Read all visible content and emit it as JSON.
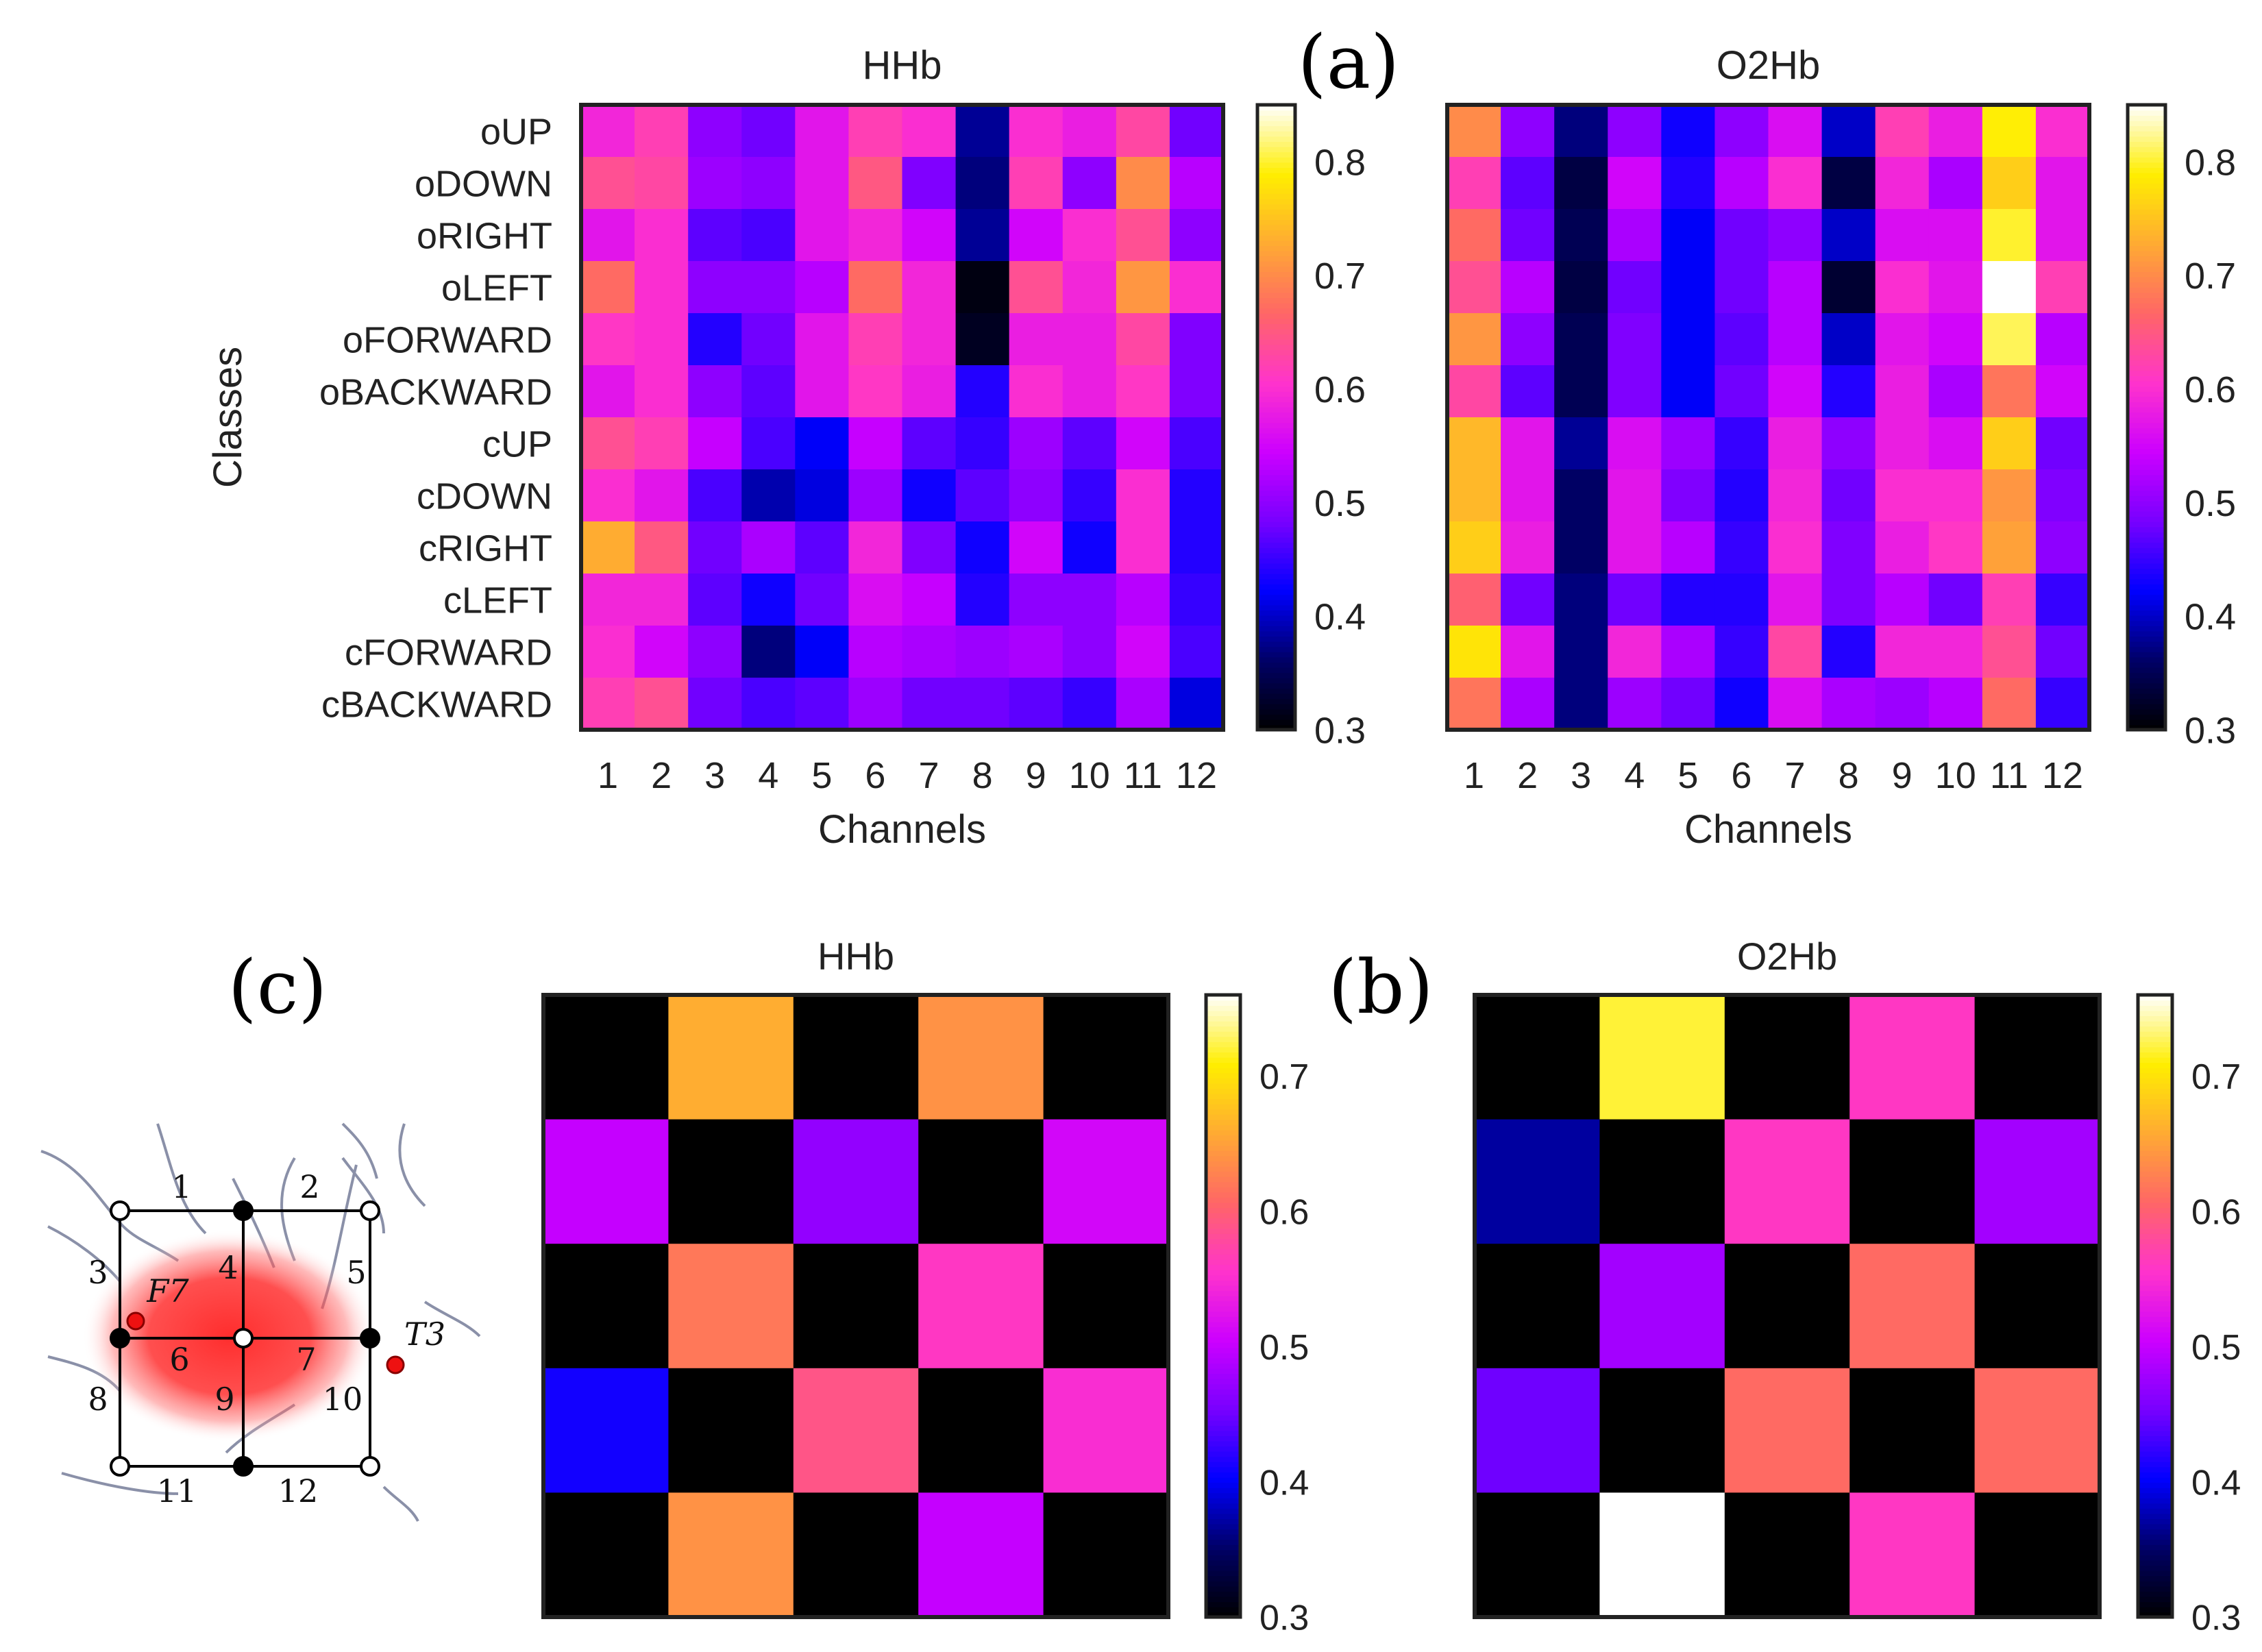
{
  "panel_letters": {
    "a": "(a)",
    "b": "(b)",
    "c": "(c)"
  },
  "colormap_stops": [
    "#000000",
    "#000066",
    "#0000ff",
    "#7700ff",
    "#cc00ff",
    "#ff33cc",
    "#ff6666",
    "#ffaa33",
    "#ffee00",
    "#ffffff"
  ],
  "chart_data": [
    {
      "id": "a-hhb",
      "type": "heatmap",
      "title": "HHb",
      "xlabel": "Channels",
      "ylabel": "Classes",
      "x_ticks": [
        "1",
        "2",
        "3",
        "4",
        "5",
        "6",
        "7",
        "8",
        "9",
        "10",
        "11",
        "12"
      ],
      "y_ticks": [
        "oUP",
        "oDOWN",
        "oRIGHT",
        "oLEFT",
        "oFORWARD",
        "oBACKWARD",
        "cUP",
        "cDOWN",
        "cRIGHT",
        "cLEFT",
        "cFORWARD",
        "cBACKWARD"
      ],
      "clim": [
        0.3,
        0.85
      ],
      "colorbar_ticks": [
        "0.3",
        "0.4",
        "0.5",
        "0.6",
        "0.7",
        "0.8"
      ],
      "values": [
        [
          0.59,
          0.62,
          0.5,
          0.48,
          0.57,
          0.62,
          0.6,
          0.38,
          0.6,
          0.58,
          0.63,
          0.48
        ],
        [
          0.64,
          0.63,
          0.51,
          0.5,
          0.57,
          0.65,
          0.49,
          0.37,
          0.62,
          0.5,
          0.7,
          0.53
        ],
        [
          0.57,
          0.6,
          0.47,
          0.46,
          0.57,
          0.59,
          0.55,
          0.38,
          0.55,
          0.6,
          0.64,
          0.5
        ],
        [
          0.67,
          0.6,
          0.5,
          0.5,
          0.53,
          0.67,
          0.59,
          0.31,
          0.64,
          0.59,
          0.71,
          0.6
        ],
        [
          0.61,
          0.6,
          0.44,
          0.48,
          0.57,
          0.62,
          0.59,
          0.32,
          0.58,
          0.58,
          0.63,
          0.49
        ],
        [
          0.57,
          0.6,
          0.5,
          0.47,
          0.57,
          0.61,
          0.58,
          0.44,
          0.6,
          0.58,
          0.61,
          0.49
        ],
        [
          0.64,
          0.62,
          0.54,
          0.46,
          0.42,
          0.54,
          0.47,
          0.45,
          0.51,
          0.47,
          0.55,
          0.46
        ],
        [
          0.6,
          0.57,
          0.46,
          0.39,
          0.41,
          0.51,
          0.43,
          0.47,
          0.5,
          0.45,
          0.6,
          0.44
        ],
        [
          0.73,
          0.65,
          0.48,
          0.52,
          0.47,
          0.59,
          0.49,
          0.43,
          0.55,
          0.43,
          0.6,
          0.44
        ],
        [
          0.59,
          0.59,
          0.47,
          0.43,
          0.48,
          0.56,
          0.54,
          0.44,
          0.5,
          0.5,
          0.53,
          0.45
        ],
        [
          0.6,
          0.55,
          0.5,
          0.37,
          0.42,
          0.53,
          0.52,
          0.51,
          0.52,
          0.5,
          0.55,
          0.46
        ],
        [
          0.62,
          0.64,
          0.48,
          0.46,
          0.47,
          0.51,
          0.48,
          0.48,
          0.47,
          0.45,
          0.52,
          0.41
        ]
      ]
    },
    {
      "id": "a-o2hb",
      "type": "heatmap",
      "title": "O2Hb",
      "xlabel": "Channels",
      "ylabel": "",
      "x_ticks": [
        "1",
        "2",
        "3",
        "4",
        "5",
        "6",
        "7",
        "8",
        "9",
        "10",
        "11",
        "12"
      ],
      "y_ticks": [],
      "clim": [
        0.3,
        0.85
      ],
      "colorbar_ticks": [
        "0.3",
        "0.4",
        "0.5",
        "0.6",
        "0.7",
        "0.8"
      ],
      "values": [
        [
          0.7,
          0.5,
          0.37,
          0.5,
          0.43,
          0.5,
          0.56,
          0.4,
          0.62,
          0.58,
          0.79,
          0.6
        ],
        [
          0.62,
          0.47,
          0.34,
          0.55,
          0.44,
          0.53,
          0.6,
          0.34,
          0.59,
          0.52,
          0.76,
          0.57
        ],
        [
          0.67,
          0.48,
          0.35,
          0.52,
          0.42,
          0.48,
          0.5,
          0.4,
          0.56,
          0.56,
          0.8,
          0.57
        ],
        [
          0.64,
          0.53,
          0.34,
          0.48,
          0.42,
          0.48,
          0.53,
          0.33,
          0.6,
          0.57,
          0.86,
          0.62
        ],
        [
          0.71,
          0.5,
          0.35,
          0.49,
          0.42,
          0.47,
          0.53,
          0.4,
          0.57,
          0.55,
          0.81,
          0.53
        ],
        [
          0.63,
          0.47,
          0.35,
          0.49,
          0.42,
          0.48,
          0.55,
          0.44,
          0.58,
          0.52,
          0.68,
          0.55
        ],
        [
          0.74,
          0.57,
          0.38,
          0.56,
          0.51,
          0.45,
          0.58,
          0.5,
          0.58,
          0.56,
          0.76,
          0.48
        ],
        [
          0.74,
          0.57,
          0.36,
          0.57,
          0.49,
          0.44,
          0.59,
          0.48,
          0.6,
          0.6,
          0.71,
          0.49
        ],
        [
          0.76,
          0.58,
          0.36,
          0.57,
          0.53,
          0.45,
          0.6,
          0.49,
          0.58,
          0.61,
          0.72,
          0.5
        ],
        [
          0.66,
          0.48,
          0.37,
          0.48,
          0.44,
          0.44,
          0.57,
          0.49,
          0.53,
          0.48,
          0.62,
          0.45
        ],
        [
          0.78,
          0.57,
          0.37,
          0.59,
          0.52,
          0.45,
          0.63,
          0.44,
          0.59,
          0.59,
          0.64,
          0.48
        ],
        [
          0.68,
          0.52,
          0.37,
          0.51,
          0.48,
          0.43,
          0.56,
          0.52,
          0.51,
          0.53,
          0.67,
          0.45
        ]
      ]
    },
    {
      "id": "b-hhb",
      "type": "heatmap",
      "title": "HHb",
      "xlabel": "",
      "ylabel": "",
      "x_ticks": [],
      "y_ticks": [],
      "clim": [
        0.3,
        0.76
      ],
      "colorbar_ticks": [
        "0.3",
        "0.4",
        "0.5",
        "0.6",
        "0.7"
      ],
      "values": [
        [
          0.3,
          0.66,
          0.3,
          0.64,
          0.3
        ],
        [
          0.5,
          0.3,
          0.47,
          0.3,
          0.51
        ],
        [
          0.3,
          0.62,
          0.3,
          0.56,
          0.3
        ],
        [
          0.41,
          0.3,
          0.59,
          0.3,
          0.55
        ],
        [
          0.3,
          0.64,
          0.3,
          0.5,
          0.3
        ]
      ]
    },
    {
      "id": "b-o2hb",
      "type": "heatmap",
      "title": "O2Hb",
      "xlabel": "",
      "ylabel": "",
      "x_ticks": [],
      "y_ticks": [],
      "clim": [
        0.3,
        0.76
      ],
      "colorbar_ticks": [
        "0.3",
        "0.4",
        "0.5",
        "0.6",
        "0.7"
      ],
      "values": [
        [
          0.3,
          0.72,
          0.3,
          0.56,
          0.3
        ],
        [
          0.37,
          0.3,
          0.56,
          0.3,
          0.48
        ],
        [
          0.3,
          0.48,
          0.3,
          0.61,
          0.3
        ],
        [
          0.45,
          0.3,
          0.61,
          0.3,
          0.61
        ],
        [
          0.3,
          0.76,
          0.3,
          0.56,
          0.3
        ]
      ]
    }
  ],
  "probe_diagram": {
    "channel_labels": [
      "1",
      "2",
      "3",
      "4",
      "5",
      "6",
      "7",
      "8",
      "9",
      "10",
      "11",
      "12"
    ],
    "electrode_labels": [
      "F7",
      "T3"
    ]
  }
}
